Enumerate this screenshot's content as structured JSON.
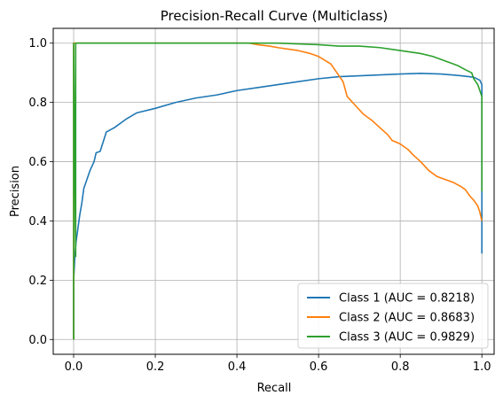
{
  "chart_data": {
    "type": "line",
    "title": "Precision-Recall Curve (Multiclass)",
    "xlabel": "Recall",
    "ylabel": "Precision",
    "xlim": [
      -0.05,
      1.03
    ],
    "ylim": [
      -0.05,
      1.05
    ],
    "xticks": [
      0.0,
      0.2,
      0.4,
      0.6,
      0.8,
      1.0
    ],
    "xtick_labels": [
      "0.0",
      "0.2",
      "0.4",
      "0.6",
      "0.8",
      "1.0"
    ],
    "yticks": [
      0.0,
      0.2,
      0.4,
      0.6,
      0.8,
      1.0
    ],
    "ytick_labels": [
      "0.0",
      "0.2",
      "0.4",
      "0.6",
      "0.8",
      "1.0"
    ],
    "grid": true,
    "legend_position": "lower-right",
    "series": [
      {
        "name": "Class 1 (AUC = 0.8218)",
        "color": "#1f77b4",
        "points": [
          [
            0.0,
            0.0
          ],
          [
            0.0,
            0.2
          ],
          [
            0.003,
            0.28
          ],
          [
            0.006,
            0.33
          ],
          [
            0.01,
            0.37
          ],
          [
            0.015,
            0.42
          ],
          [
            0.02,
            0.46
          ],
          [
            0.025,
            0.51
          ],
          [
            0.03,
            0.53
          ],
          [
            0.04,
            0.57
          ],
          [
            0.05,
            0.6
          ],
          [
            0.055,
            0.63
          ],
          [
            0.065,
            0.635
          ],
          [
            0.08,
            0.7
          ],
          [
            0.1,
            0.715
          ],
          [
            0.13,
            0.745
          ],
          [
            0.155,
            0.765
          ],
          [
            0.2,
            0.78
          ],
          [
            0.25,
            0.8
          ],
          [
            0.3,
            0.815
          ],
          [
            0.35,
            0.825
          ],
          [
            0.4,
            0.84
          ],
          [
            0.45,
            0.85
          ],
          [
            0.5,
            0.86
          ],
          [
            0.55,
            0.87
          ],
          [
            0.6,
            0.88
          ],
          [
            0.65,
            0.887
          ],
          [
            0.7,
            0.89
          ],
          [
            0.75,
            0.893
          ],
          [
            0.8,
            0.896
          ],
          [
            0.85,
            0.898
          ],
          [
            0.9,
            0.896
          ],
          [
            0.95,
            0.89
          ],
          [
            0.98,
            0.885
          ],
          [
            0.995,
            0.875
          ],
          [
            1.0,
            0.86
          ],
          [
            1.0,
            0.6
          ],
          [
            1.0,
            0.29
          ]
        ]
      },
      {
        "name": "Class 2 (AUC = 0.8683)",
        "color": "#ff7f0e",
        "points": [
          [
            0.0,
            0.0
          ],
          [
            0.0,
            1.0
          ],
          [
            0.43,
            1.0
          ],
          [
            0.45,
            0.995
          ],
          [
            0.48,
            0.99
          ],
          [
            0.5,
            0.985
          ],
          [
            0.55,
            0.975
          ],
          [
            0.58,
            0.965
          ],
          [
            0.6,
            0.955
          ],
          [
            0.63,
            0.93
          ],
          [
            0.645,
            0.9
          ],
          [
            0.66,
            0.87
          ],
          [
            0.67,
            0.82
          ],
          [
            0.69,
            0.79
          ],
          [
            0.71,
            0.76
          ],
          [
            0.73,
            0.74
          ],
          [
            0.75,
            0.715
          ],
          [
            0.77,
            0.69
          ],
          [
            0.78,
            0.672
          ],
          [
            0.8,
            0.66
          ],
          [
            0.82,
            0.64
          ],
          [
            0.83,
            0.625
          ],
          [
            0.85,
            0.6
          ],
          [
            0.86,
            0.585
          ],
          [
            0.87,
            0.57
          ],
          [
            0.89,
            0.55
          ],
          [
            0.91,
            0.54
          ],
          [
            0.93,
            0.53
          ],
          [
            0.95,
            0.515
          ],
          [
            0.96,
            0.505
          ],
          [
            0.97,
            0.485
          ],
          [
            0.98,
            0.47
          ],
          [
            0.99,
            0.45
          ],
          [
            0.995,
            0.43
          ],
          [
            1.0,
            0.4
          ]
        ]
      },
      {
        "name": "Class 3 (AUC = 0.9829)",
        "color": "#2ca02c",
        "points": [
          [
            0.0,
            0.0
          ],
          [
            0.0,
            1.0
          ],
          [
            0.005,
            0.28
          ],
          [
            0.005,
            1.0
          ],
          [
            0.5,
            1.0
          ],
          [
            0.6,
            0.995
          ],
          [
            0.65,
            0.99
          ],
          [
            0.7,
            0.99
          ],
          [
            0.75,
            0.985
          ],
          [
            0.8,
            0.975
          ],
          [
            0.85,
            0.965
          ],
          [
            0.88,
            0.955
          ],
          [
            0.9,
            0.945
          ],
          [
            0.92,
            0.935
          ],
          [
            0.94,
            0.925
          ],
          [
            0.96,
            0.91
          ],
          [
            0.975,
            0.9
          ],
          [
            0.98,
            0.88
          ],
          [
            0.99,
            0.86
          ],
          [
            0.995,
            0.84
          ],
          [
            1.0,
            0.82
          ],
          [
            1.0,
            0.5
          ]
        ]
      }
    ]
  }
}
